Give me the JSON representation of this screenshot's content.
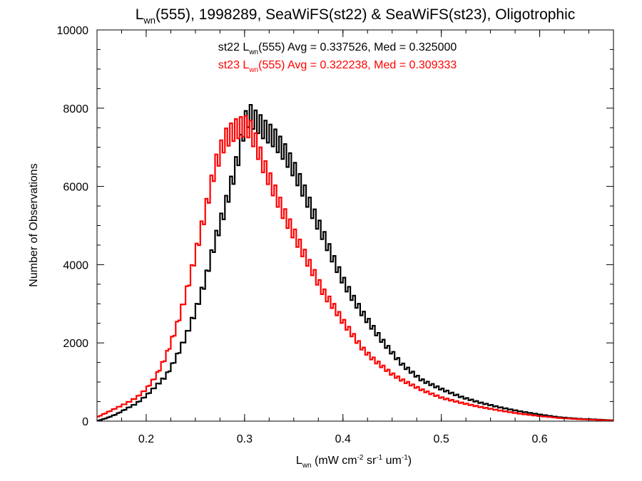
{
  "chart_data": {
    "type": "line",
    "title": {
      "pre": "L",
      "sub": "wn",
      "post": "(555), 1998289, SeaWiFS(st22) & SeaWiFS(st23), Oligotrophic"
    },
    "xlabel": {
      "pre": "L",
      "sub": "wn",
      "mid": " (mW cm",
      "sup1": "-2",
      "mid2": " sr",
      "sup2": "-1",
      "mid3": " um",
      "sup3": "-1",
      "post": ")"
    },
    "ylabel": "Number of Observations",
    "xlim": [
      0.15,
      0.675
    ],
    "ylim": [
      0,
      10000
    ],
    "x_ticks": [
      0.2,
      0.3,
      0.4,
      0.5,
      0.6
    ],
    "x_tick_labels": [
      "0.2",
      "0.3",
      "0.4",
      "0.5",
      "0.6"
    ],
    "y_ticks": [
      0,
      2000,
      4000,
      6000,
      8000,
      10000
    ],
    "y_tick_labels": [
      "0",
      "2000",
      "4000",
      "6000",
      "8000",
      "10000"
    ],
    "bin_width": 0.0025,
    "annotations": [
      {
        "color": "#000000",
        "pre": "st22 L",
        "sub": "wn",
        "post": "(555) Avg = 0.337526, Med = 0.325000"
      },
      {
        "color": "#ff0000",
        "pre": "st23 L",
        "sub": "wn",
        "post": "(555) Avg = 0.322238, Med = 0.309333"
      }
    ],
    "series": [
      {
        "color": "#000000",
        "x": [
          0.15,
          0.16,
          0.17,
          0.18,
          0.19,
          0.2,
          0.21,
          0.22,
          0.23,
          0.24,
          0.25,
          0.26,
          0.27,
          0.28,
          0.29,
          0.295,
          0.3,
          0.305,
          0.31,
          0.315,
          0.32,
          0.33,
          0.34,
          0.35,
          0.36,
          0.37,
          0.38,
          0.39,
          0.4,
          0.41,
          0.42,
          0.43,
          0.44,
          0.45,
          0.46,
          0.48,
          0.5,
          0.52,
          0.54,
          0.56,
          0.58,
          0.6,
          0.62,
          0.64,
          0.66,
          0.675
        ],
        "values": [
          0,
          80,
          180,
          320,
          450,
          650,
          900,
          1150,
          1600,
          2150,
          2800,
          3600,
          4600,
          5450,
          6400,
          6900,
          7600,
          7850,
          7700,
          7600,
          7450,
          7250,
          6900,
          6450,
          5900,
          5300,
          4750,
          4150,
          3600,
          3150,
          2750,
          2400,
          2050,
          1750,
          1450,
          1050,
          820,
          620,
          470,
          350,
          250,
          170,
          100,
          60,
          40,
          20
        ]
      },
      {
        "color": "#ff0000",
        "x": [
          0.15,
          0.16,
          0.17,
          0.18,
          0.19,
          0.2,
          0.21,
          0.22,
          0.23,
          0.24,
          0.25,
          0.26,
          0.27,
          0.28,
          0.29,
          0.3,
          0.305,
          0.31,
          0.32,
          0.33,
          0.34,
          0.35,
          0.36,
          0.37,
          0.38,
          0.39,
          0.4,
          0.41,
          0.42,
          0.43,
          0.44,
          0.45,
          0.46,
          0.48,
          0.5,
          0.52,
          0.54,
          0.56,
          0.58,
          0.6,
          0.62,
          0.64,
          0.66,
          0.675
        ],
        "values": [
          100,
          220,
          340,
          460,
          600,
          820,
          1150,
          1650,
          2350,
          3200,
          4250,
          5350,
          6500,
          7200,
          7450,
          7550,
          7500,
          7200,
          6500,
          5900,
          5300,
          4800,
          4300,
          3800,
          3300,
          2950,
          2550,
          2200,
          1850,
          1600,
          1400,
          1200,
          1050,
          800,
          600,
          470,
          360,
          270,
          190,
          130,
          80,
          50,
          30,
          15
        ]
      }
    ]
  }
}
